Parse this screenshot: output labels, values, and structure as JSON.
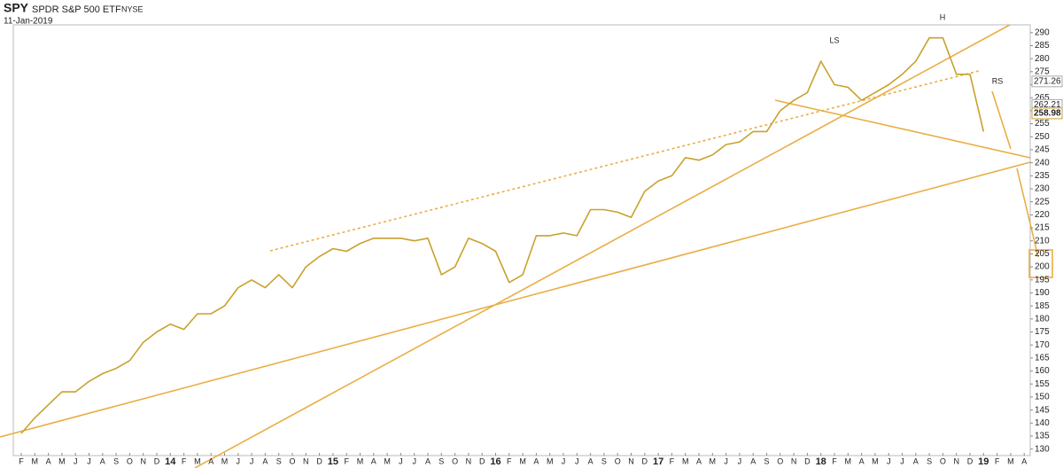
{
  "chart_data": {
    "type": "line",
    "ticker": "SPY",
    "name": "SPDR S&P 500 ETF",
    "exchange": "NYSE",
    "date": "11-Jan-2019",
    "categories": [
      "F",
      "M",
      "A",
      "M",
      "J",
      "J",
      "A",
      "S",
      "O",
      "N",
      "D",
      "14",
      "F",
      "M",
      "A",
      "M",
      "J",
      "J",
      "A",
      "S",
      "O",
      "N",
      "D",
      "15",
      "F",
      "M",
      "A",
      "M",
      "J",
      "J",
      "A",
      "S",
      "O",
      "N",
      "D",
      "16",
      "F",
      "M",
      "A",
      "M",
      "J",
      "J",
      "A",
      "S",
      "O",
      "N",
      "D",
      "17",
      "F",
      "M",
      "A",
      "M",
      "J",
      "J",
      "A",
      "S",
      "O",
      "N",
      "D",
      "18",
      "F",
      "M",
      "A",
      "M",
      "J",
      "J",
      "A",
      "S",
      "O",
      "N",
      "D",
      "19",
      "F",
      "M",
      "A"
    ],
    "series": [
      {
        "color": "#c9a12c",
        "values": [
          136,
          142,
          147,
          152,
          152,
          156,
          159,
          161,
          164,
          171,
          175,
          178,
          176,
          182,
          182,
          185,
          192,
          195,
          192,
          197,
          192,
          200,
          204,
          207,
          206,
          209,
          211,
          211,
          211,
          210,
          211,
          197,
          200,
          211,
          209,
          206,
          194,
          197,
          212,
          212,
          213,
          212,
          222,
          222,
          221,
          219,
          229,
          233,
          235,
          242,
          241,
          243,
          247,
          248,
          252,
          252,
          260,
          264,
          267,
          279,
          270,
          269,
          264,
          267,
          270,
          274,
          279,
          288,
          288,
          274,
          274,
          252,
          null,
          null,
          null
        ]
      }
    ],
    "ylim": [
      127.5,
      293
    ],
    "yticks": [
      130,
      135,
      140,
      145,
      150,
      155,
      160,
      165,
      170,
      175,
      180,
      185,
      190,
      195,
      200,
      205,
      210,
      215,
      220,
      225,
      230,
      235,
      240,
      245,
      250,
      255,
      260,
      265,
      270,
      275,
      280,
      285,
      290
    ],
    "axis_markers": [
      271.26,
      262.21,
      258.98
    ],
    "annotations": [
      "LS",
      "H",
      "RS"
    ]
  }
}
